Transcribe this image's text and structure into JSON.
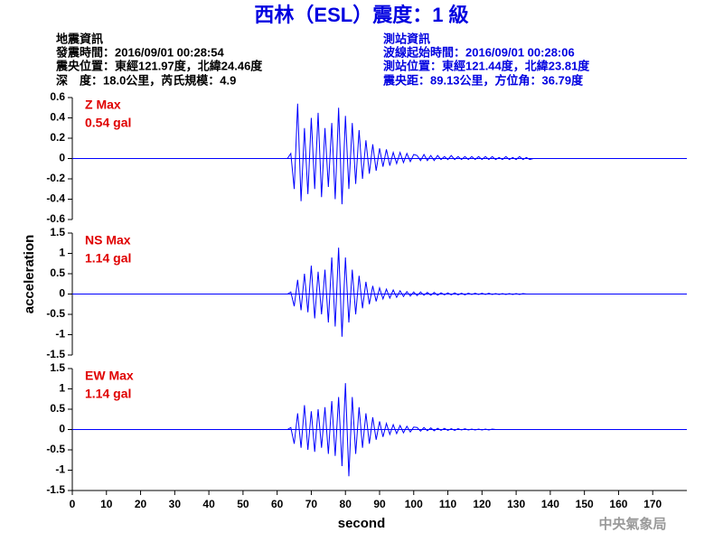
{
  "header": {
    "title": "西林（ESL）震度：1 級",
    "left": [
      "地震資訊",
      "發震時間：2016/09/01 00:28:54",
      "震央位置：東經121.97度，北緯24.46度",
      "深　度：18.0公里，芮氏規模：4.9"
    ],
    "right": [
      "測站資訊",
      "波線起始時間：2016/09/01 00:28:06",
      "測站位置：東經121.44度，北緯23.81度",
      "震央距：89.13公里，方位角：36.79度"
    ]
  },
  "footer": "中央氣象局",
  "chart_data": [
    {
      "type": "line",
      "annotations": [
        "Z Max",
        "0.54 gal"
      ],
      "color": "#0000ff",
      "ylim": [
        -0.6,
        0.6
      ],
      "yticks": [
        0.6,
        0.4,
        0.2,
        0,
        -0.2,
        -0.4,
        -0.6
      ],
      "xlim": [
        0,
        180
      ],
      "x": [
        0,
        63,
        64,
        65,
        66,
        67,
        68,
        69,
        70,
        71,
        72,
        73,
        74,
        75,
        76,
        77,
        78,
        79,
        80,
        81,
        82,
        83,
        84,
        85,
        86,
        87,
        88,
        89,
        90,
        91,
        92,
        93,
        94,
        95,
        96,
        97,
        98,
        99,
        100,
        101,
        102,
        103,
        104,
        105,
        106,
        107,
        108,
        109,
        110,
        111,
        112,
        113,
        114,
        115,
        116,
        117,
        118,
        119,
        120,
        121,
        122,
        123,
        124,
        125,
        126,
        127,
        128,
        129,
        130,
        131,
        132,
        133,
        134,
        135,
        180
      ],
      "values": [
        0,
        0,
        0.05,
        -0.3,
        0.54,
        -0.42,
        0.3,
        -0.35,
        0.4,
        -0.3,
        0.45,
        -0.38,
        0.3,
        -0.28,
        0.35,
        -0.4,
        0.5,
        -0.45,
        0.42,
        -0.3,
        0.35,
        -0.25,
        0.28,
        -0.2,
        0.18,
        -0.15,
        0.14,
        -0.12,
        0.1,
        -0.08,
        0.09,
        -0.07,
        0.06,
        -0.05,
        0.06,
        -0.04,
        0.05,
        -0.03,
        0.04,
        0.03,
        -0.02,
        0.04,
        -0.02,
        0.03,
        -0.02,
        0.03,
        -0.01,
        0.02,
        -0.01,
        0.03,
        -0.01,
        0.02,
        -0.01,
        0.02,
        -0.01,
        0.02,
        -0.01,
        0.02,
        -0.01,
        0.02,
        -0.01,
        0.02,
        -0.01,
        0.01,
        -0.01,
        0.02,
        -0.01,
        0.01,
        -0.01,
        0.02,
        -0.01,
        0.01,
        -0.01,
        0,
        0
      ]
    },
    {
      "type": "line",
      "annotations": [
        "NS Max",
        "1.14 gal"
      ],
      "color": "#0000ff",
      "ylabel": "acceleration",
      "ylim": [
        -1.5,
        1.5
      ],
      "yticks": [
        1.5,
        1,
        0.5,
        0,
        -0.5,
        -1,
        -1.5
      ],
      "xlim": [
        0,
        180
      ],
      "x": [
        0,
        63,
        64,
        65,
        66,
        67,
        68,
        69,
        70,
        71,
        72,
        73,
        74,
        75,
        76,
        77,
        78,
        79,
        80,
        81,
        82,
        83,
        84,
        85,
        86,
        87,
        88,
        89,
        90,
        91,
        92,
        93,
        94,
        95,
        96,
        97,
        98,
        99,
        100,
        101,
        102,
        103,
        104,
        105,
        106,
        107,
        108,
        109,
        110,
        111,
        112,
        113,
        114,
        115,
        116,
        117,
        118,
        119,
        120,
        121,
        122,
        123,
        124,
        125,
        126,
        127,
        128,
        129,
        130,
        131,
        132,
        133,
        134,
        135,
        180
      ],
      "values": [
        0,
        0,
        0.05,
        -0.3,
        0.35,
        -0.4,
        0.5,
        -0.45,
        0.7,
        -0.6,
        0.55,
        -0.5,
        0.6,
        -0.7,
        0.9,
        -0.8,
        1.14,
        -1.05,
        0.9,
        -0.7,
        0.6,
        -0.5,
        0.45,
        -0.35,
        0.3,
        -0.25,
        0.2,
        -0.18,
        0.15,
        -0.12,
        0.12,
        -0.1,
        0.1,
        -0.08,
        0.08,
        -0.06,
        0.06,
        -0.05,
        0.05,
        -0.04,
        0.05,
        -0.03,
        0.04,
        -0.03,
        0.04,
        -0.03,
        0.03,
        -0.02,
        0.03,
        -0.02,
        0.03,
        -0.02,
        0.02,
        -0.02,
        0.02,
        -0.01,
        0.02,
        -0.01,
        0.02,
        -0.01,
        0.02,
        -0.01,
        0.01,
        -0.01,
        0.01,
        -0.01,
        0.01,
        -0.01,
        0.01,
        -0.01,
        0.01,
        0,
        0,
        0,
        0
      ]
    },
    {
      "type": "line",
      "annotations": [
        "EW Max",
        "1.14 gal"
      ],
      "color": "#0000ff",
      "xlabel": "second",
      "ylim": [
        -1.5,
        1.5
      ],
      "yticks": [
        1.5,
        1,
        0.5,
        0,
        -0.5,
        -1,
        -1.5
      ],
      "xlim": [
        0,
        180
      ],
      "xticks": [
        0,
        10,
        20,
        30,
        40,
        50,
        60,
        70,
        80,
        90,
        100,
        110,
        120,
        130,
        140,
        150,
        160,
        170
      ],
      "x": [
        0,
        63,
        64,
        65,
        66,
        67,
        68,
        69,
        70,
        71,
        72,
        73,
        74,
        75,
        76,
        77,
        78,
        79,
        80,
        81,
        82,
        83,
        84,
        85,
        86,
        87,
        88,
        89,
        90,
        91,
        92,
        93,
        94,
        95,
        96,
        97,
        98,
        99,
        100,
        101,
        102,
        103,
        104,
        105,
        106,
        107,
        108,
        109,
        110,
        111,
        112,
        113,
        114,
        115,
        116,
        117,
        118,
        119,
        120,
        121,
        122,
        123,
        124,
        125,
        126,
        127,
        128,
        129,
        130,
        131,
        132,
        133,
        134,
        135,
        180
      ],
      "values": [
        0,
        0,
        0.05,
        -0.35,
        0.4,
        -0.45,
        0.6,
        -0.5,
        0.45,
        -0.55,
        0.5,
        -0.45,
        0.55,
        -0.6,
        0.7,
        -0.65,
        0.8,
        -0.9,
        1.14,
        -1.15,
        0.8,
        -0.6,
        0.55,
        -0.45,
        0.4,
        -0.35,
        0.3,
        -0.25,
        0.2,
        -0.18,
        0.15,
        -0.12,
        0.12,
        -0.1,
        0.1,
        -0.08,
        0.08,
        -0.06,
        0.06,
        0.05,
        -0.04,
        0.05,
        -0.03,
        0.04,
        -0.03,
        0.03,
        -0.02,
        0.03,
        -0.02,
        0.02,
        -0.02,
        0.02,
        -0.01,
        0.02,
        -0.01,
        0.01,
        -0.01,
        0.01,
        -0.01,
        0.01,
        -0.01,
        0.01,
        0,
        0,
        0,
        0,
        0,
        0,
        0,
        0,
        0,
        0,
        0,
        0,
        0
      ]
    }
  ]
}
